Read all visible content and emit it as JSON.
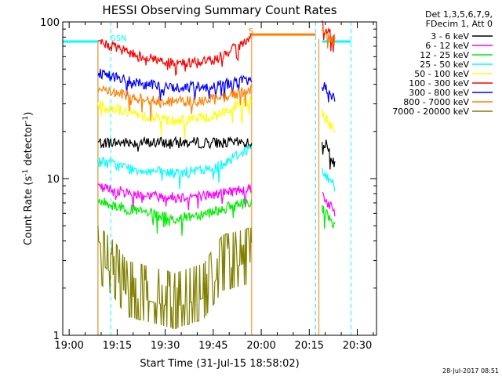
{
  "chart_data": {
    "type": "line",
    "title": "HESSI Observing Summary Count Rates",
    "xlabel": "Start Time (31-Jul-15 18:58:02)",
    "ylabel": "Count Rate (s⁻¹ detector⁻¹)",
    "ylabel_main": "Count Rate (s",
    "ylabel_sup1": "-1",
    "ylabel_mid": " detector",
    "ylabel_sup2": "-1",
    "ylabel_end": ")",
    "y_scale": "log",
    "ylim": [
      1,
      100
    ],
    "yticks": [
      1,
      10,
      100
    ],
    "ytick_labels": [
      "1",
      "10",
      "100"
    ],
    "xlim_minutes": [
      -2,
      96
    ],
    "xticks_minutes": [
      0,
      15,
      30,
      45,
      60,
      75,
      90
    ],
    "xtick_labels": [
      "19:00",
      "19:15",
      "19:30",
      "19:45",
      "20:00",
      "20:15",
      "20:30"
    ],
    "timestamp": "28-Jul-2017 08:51",
    "legend": {
      "position": "top-right",
      "header": [
        "Det 1,3,5,6,7,9,",
        "FDecim 1, Att 0"
      ],
      "entries": [
        {
          "label": "3 - 6 keV",
          "color": "#000000"
        },
        {
          "label": "6 - 12 keV",
          "color": "#ff00ff"
        },
        {
          "label": "12 - 25 keV",
          "color": "#00ee00"
        },
        {
          "label": "25 - 50 keV",
          "color": "#00ffff"
        },
        {
          "label": "50 - 100 keV",
          "color": "#ffff00"
        },
        {
          "label": "100 - 300 keV",
          "color": "#ff0000"
        },
        {
          "label": "300 - 800 keV",
          "color": "#0000ff"
        },
        {
          "label": "800 - 7000 keV",
          "color": "#ff8000"
        },
        {
          "label": "7000 - 20000 keV",
          "color": "#808000"
        }
      ]
    },
    "series_segment_minutes": [
      [
        9,
        57
      ],
      [
        79,
        83
      ]
    ],
    "series": [
      {
        "label": "3 - 6 keV",
        "color": "#000000",
        "band": [
          [
            9,
            17
          ],
          [
            57,
            17
          ],
          [
            79,
            16
          ],
          [
            80,
            17
          ],
          [
            81,
            16
          ],
          [
            83,
            12
          ]
        ]
      },
      {
        "label": "6 - 12 keV",
        "color": "#ff00ff",
        "band": [
          [
            9,
            8.8
          ],
          [
            20,
            8
          ],
          [
            33,
            7.6
          ],
          [
            45,
            7.9
          ],
          [
            57,
            8.8
          ],
          [
            79,
            8
          ],
          [
            83,
            6
          ]
        ]
      },
      {
        "label": "12 - 25 keV",
        "color": "#00ee00",
        "band": [
          [
            9,
            7.2
          ],
          [
            20,
            6.3
          ],
          [
            33,
            5.5
          ],
          [
            45,
            6.2
          ],
          [
            57,
            7.2
          ],
          [
            79,
            6.5
          ],
          [
            83,
            5
          ]
        ]
      },
      {
        "label": "25 - 50 keV",
        "color": "#00ffff",
        "band": [
          [
            9,
            13
          ],
          [
            20,
            11.5
          ],
          [
            33,
            10.8
          ],
          [
            45,
            11.5
          ],
          [
            57,
            16
          ],
          [
            79,
            11
          ],
          [
            83,
            9
          ]
        ]
      },
      {
        "label": "50 - 100 keV",
        "color": "#ffff00",
        "band": [
          [
            9,
            30
          ],
          [
            20,
            26
          ],
          [
            33,
            23.5
          ],
          [
            45,
            25
          ],
          [
            57,
            32
          ],
          [
            79,
            26
          ],
          [
            83,
            20
          ]
        ]
      },
      {
        "label": "100 - 300 keV",
        "color": "#ff0000",
        "band": [
          [
            9,
            75
          ],
          [
            20,
            62
          ],
          [
            33,
            54
          ],
          [
            45,
            57
          ],
          [
            57,
            78
          ],
          [
            79,
            95
          ],
          [
            83,
            80
          ]
        ]
      },
      {
        "label": "300 - 800 keV",
        "color": "#0000ff",
        "band": [
          [
            9,
            48
          ],
          [
            20,
            41
          ],
          [
            33,
            38
          ],
          [
            45,
            39
          ],
          [
            57,
            43
          ],
          [
            79,
            40
          ],
          [
            83,
            32
          ]
        ]
      },
      {
        "label": "800 - 7000 keV",
        "color": "#ff8000",
        "band": [
          [
            9,
            38
          ],
          [
            20,
            33
          ],
          [
            33,
            31
          ],
          [
            45,
            32
          ],
          [
            57,
            37
          ],
          [
            79,
            90
          ],
          [
            83,
            75
          ]
        ]
      },
      {
        "label": "7000 - 20000 keV",
        "color": "#808000",
        "band": [
          [
            9,
            4
          ],
          [
            14,
            3.2
          ],
          [
            18,
            2.4
          ],
          [
            33,
            2.0
          ],
          [
            42,
            2.3
          ],
          [
            48,
            3.5
          ],
          [
            57,
            3.9
          ]
        ]
      }
    ],
    "overlays": [
      {
        "kind": "cyan-flat-line",
        "color": "#00ffff",
        "value": 75,
        "ranges": [
          [
            -2,
            9
          ],
          [
            79,
            88
          ]
        ]
      },
      {
        "kind": "orange-flat-line",
        "color": "#ff8000",
        "value": 83,
        "ranges": [
          [
            57,
            77
          ]
        ]
      },
      {
        "kind": "cyan-vertical-dashed",
        "color": "#00ffff",
        "minutes": [
          13,
          77,
          88
        ]
      },
      {
        "kind": "cyan-vertical-solid",
        "color": "#00ffff",
        "minutes": [
          9
        ]
      }
    ],
    "annotations": [
      {
        "text": "S",
        "minute": 56,
        "value": 84,
        "color": "#ff8000"
      },
      {
        "text": "SSN",
        "minute": 13,
        "value": 76,
        "color": "#00ffff"
      }
    ]
  }
}
